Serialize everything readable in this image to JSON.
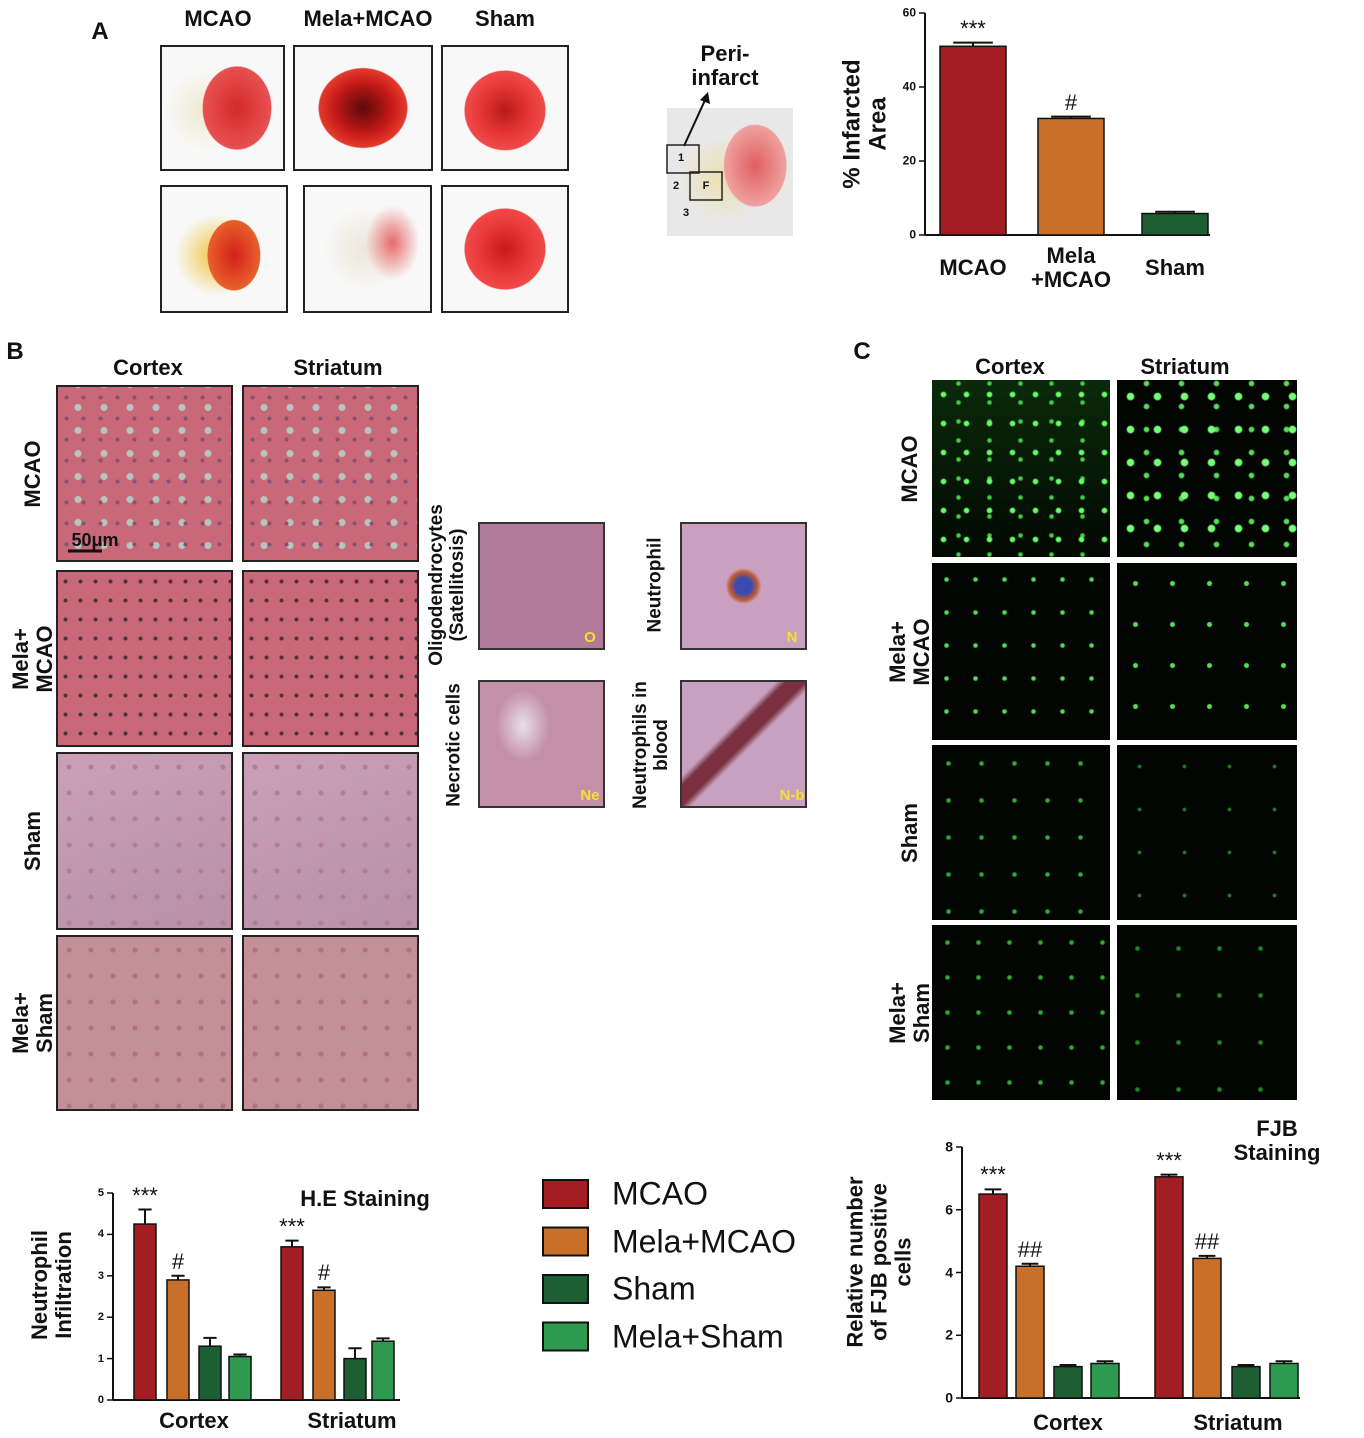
{
  "panel_a": {
    "label": "A",
    "columns": [
      "MCAO",
      "Mela+MCAO",
      "Sham"
    ],
    "inset_title": "Peri-\ninfarct",
    "inset_regions": [
      "1",
      "2",
      "F",
      "3"
    ]
  },
  "panel_b": {
    "label": "B",
    "columns": [
      "Cortex",
      "Striatum"
    ],
    "rows": [
      "MCAO",
      "Mela+\nMCAO",
      "Sham",
      "Mela+\nSham"
    ],
    "scale_bar": "50μm",
    "insets": [
      {
        "title": "Oligodendrocytes\n(Satellitosis)",
        "tag": "O"
      },
      {
        "title": "Neutrophil",
        "tag": "N"
      },
      {
        "title": "Necrotic cells",
        "tag": "Ne"
      },
      {
        "title": "Neutrophils in\nblood",
        "tag": "N-b"
      }
    ]
  },
  "panel_c": {
    "label": "C",
    "columns": [
      "Cortex",
      "Striatum"
    ],
    "rows": [
      "MCAO",
      "Mela+\nMCAO",
      "Sham",
      "Mela+\nSham"
    ]
  },
  "chart_data": [
    {
      "type": "bar",
      "y_label": "% Infarcted\nArea",
      "categories": [
        "MCAO",
        "Mela\n+MCAO",
        "Sham"
      ],
      "values": [
        51,
        31.5,
        5.8
      ],
      "errors": [
        1,
        0.5,
        0.5
      ],
      "bar_labels": [
        "***",
        "#",
        null
      ],
      "colors": [
        "#a31e22",
        "#c8702a",
        "#1e5e33"
      ],
      "ylim": [
        0,
        60
      ],
      "yticks": [
        0,
        20,
        40,
        60
      ]
    },
    {
      "type": "bar",
      "title": "H.E Staining",
      "y_label": "Neutrophil\nInfiltration",
      "categories": [
        "Cortex",
        "Striatum"
      ],
      "ylim": [
        0,
        5
      ],
      "yticks": [
        0,
        1,
        2,
        3,
        4,
        5
      ],
      "series": [
        {
          "name": "MCAO",
          "color": "#a31e22",
          "values": [
            4.25,
            3.7
          ],
          "errors": [
            0.35,
            0.15
          ],
          "labels": [
            "***",
            "***"
          ]
        },
        {
          "name": "Mela+MCAO",
          "color": "#c8702a",
          "values": [
            2.9,
            2.65
          ],
          "errors": [
            0.1,
            0.07
          ],
          "labels": [
            "#",
            "#"
          ]
        },
        {
          "name": "Sham",
          "color": "#1e5e33",
          "values": [
            1.3,
            1.0
          ],
          "errors": [
            0.2,
            0.25
          ]
        },
        {
          "name": "Mela+Sham",
          "color": "#2e9a4f",
          "values": [
            1.05,
            1.42
          ],
          "errors": [
            0.05,
            0.07
          ]
        }
      ]
    },
    {
      "type": "bar",
      "title": "FJB Staining",
      "y_label": "Relative number\nof FJB positive\ncells",
      "categories": [
        "Cortex",
        "Striatum"
      ],
      "ylim": [
        0,
        8
      ],
      "yticks": [
        0,
        2,
        4,
        6,
        8
      ],
      "series": [
        {
          "color": "#a31e22",
          "values": [
            6.5,
            7.05
          ],
          "errors": [
            0.15,
            0.07
          ],
          "labels": [
            "***",
            "***"
          ]
        },
        {
          "color": "#c8702a",
          "values": [
            4.2,
            4.45
          ],
          "errors": [
            0.08,
            0.08
          ],
          "labels": [
            "##",
            "##"
          ]
        },
        {
          "color": "#1e5e33",
          "values": [
            1.0,
            1.0
          ],
          "errors": [
            0.05,
            0.05
          ]
        },
        {
          "color": "#2e9a4f",
          "values": [
            1.1,
            1.1
          ],
          "errors": [
            0.07,
            0.07
          ]
        }
      ]
    }
  ]
}
